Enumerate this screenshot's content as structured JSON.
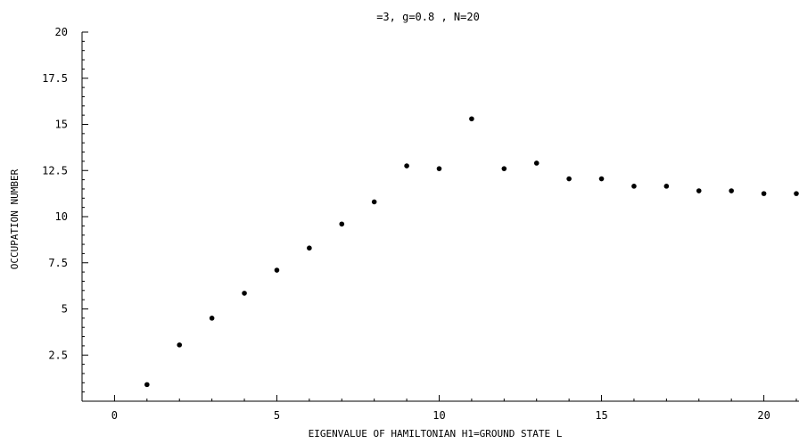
{
  "chart_data": {
    "type": "scatter",
    "title": "=3,  g=0.8 ,  N=20",
    "xlabel": "EIGENVALUE    OF  HAMILTONIAN   H1=GROUND   STATE L",
    "ylabel": "OCCUPATION NUMBER",
    "xlim": [
      -1,
      21
    ],
    "ylim": [
      0,
      20
    ],
    "xticks": [
      0,
      5,
      10,
      15,
      20
    ],
    "xtick_labels": [
      "0",
      "5",
      "10",
      "15",
      "20"
    ],
    "yticks": [
      2.5,
      5,
      7.5,
      10,
      12.5,
      15,
      17.5,
      20
    ],
    "ytick_labels": [
      "2.5",
      "5",
      "7.5",
      "10",
      "12.5",
      "15",
      "17.5",
      "20"
    ],
    "grid": false,
    "marker_color": "#000000",
    "series": [
      {
        "x": [
          1,
          2,
          3,
          4,
          5,
          6,
          7,
          8,
          9,
          10,
          11,
          12,
          13,
          14,
          15,
          16,
          17,
          18,
          19,
          20,
          21
        ],
        "y": [
          0.9,
          3.05,
          4.5,
          5.85,
          7.1,
          8.3,
          9.6,
          10.8,
          12.75,
          12.6,
          15.3,
          12.6,
          12.9,
          12.05,
          12.05,
          11.65,
          11.65,
          11.4,
          11.4,
          11.25,
          11.25
        ]
      }
    ]
  }
}
